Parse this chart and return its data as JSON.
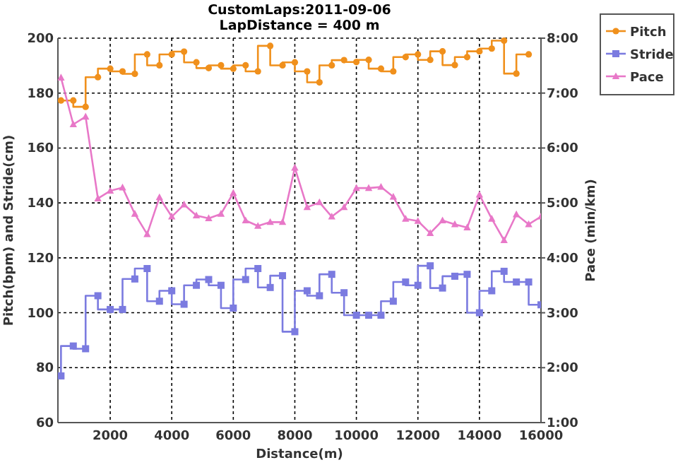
{
  "chart_data": {
    "type": "step",
    "title": "CustomLaps:2011-09-06",
    "subtitle": "LapDistance = 400 m",
    "xlabel": "Distance(m)",
    "ylabel": "Pitch(bpm) and Stride(cm)",
    "y2label": "Pace (min/km)",
    "x": [
      400,
      800,
      1200,
      1600,
      2000,
      2400,
      2800,
      3200,
      3600,
      4000,
      4400,
      4800,
      5200,
      5600,
      6000,
      6400,
      6800,
      7200,
      7600,
      8000,
      8400,
      8800,
      9200,
      9600,
      10000,
      10400,
      10800,
      11200,
      11600,
      12000,
      12400,
      12800,
      13200,
      13600,
      14000,
      14400,
      14800,
      15200,
      15600,
      16000
    ],
    "xlim": [
      300,
      16000
    ],
    "xticks": [
      2000,
      4000,
      6000,
      8000,
      10000,
      12000,
      14000,
      16000
    ],
    "ylim": [
      60,
      200
    ],
    "yticks": [
      60,
      80,
      100,
      120,
      140,
      160,
      180,
      200
    ],
    "y2lim": [
      1,
      8
    ],
    "y2ticks": [
      {
        "value": 1,
        "label": "1:00"
      },
      {
        "value": 2,
        "label": "2:00"
      },
      {
        "value": 3,
        "label": "3:00"
      },
      {
        "value": 4,
        "label": "4:00"
      },
      {
        "value": 5,
        "label": "5:00"
      },
      {
        "value": 6,
        "label": "6:00"
      },
      {
        "value": 7,
        "label": "7:00"
      },
      {
        "value": 8,
        "label": "8:00"
      }
    ],
    "grid": true,
    "legend": "right",
    "line_style": "solid",
    "series": [
      {
        "name": "Pitch",
        "color": "#f0901c",
        "marker": "circle",
        "values": [
          177.3,
          177.3,
          175,
          185.8,
          188.9,
          187.9,
          187,
          194.1,
          190.1,
          194.1,
          195.1,
          191.2,
          189.1,
          190.1,
          188.9,
          190.1,
          187.9,
          197.2,
          190.1,
          191.2,
          187.9,
          183.9,
          190.1,
          192,
          191.3,
          192.1,
          188.9,
          187.9,
          193.1,
          194.1,
          192.1,
          195.2,
          190.2,
          193.1,
          195.2,
          196.2,
          199.1,
          187.1,
          194.1,
          null
        ]
      },
      {
        "name": "Stride",
        "color": "#7b7be0",
        "marker": "square",
        "values": [
          77,
          87.9,
          86.9,
          106.2,
          101.2,
          101.2,
          112.3,
          116.1,
          104.2,
          108,
          103.1,
          110,
          112.1,
          110,
          101.7,
          112.1,
          116.1,
          109.2,
          113.5,
          93.1,
          108,
          106.2,
          114,
          107.3,
          99.1,
          99.1,
          99.1,
          104.2,
          111.2,
          110,
          117.1,
          109,
          113.3,
          114,
          100,
          108,
          115.1,
          111.2,
          111.2,
          102.9
        ]
      },
      {
        "name": "Pace",
        "type": "line",
        "axis": "y2",
        "color": "#e878c8",
        "marker": "triangle",
        "values": [
          7.28,
          6.43,
          6.57,
          5.08,
          5.22,
          5.28,
          4.8,
          4.43,
          5.1,
          4.75,
          4.97,
          4.77,
          4.72,
          4.8,
          5.18,
          4.68,
          4.58,
          4.65,
          4.65,
          5.64,
          4.92,
          5.01,
          4.75,
          4.92,
          5.27,
          5.27,
          5.29,
          5.11,
          4.71,
          4.67,
          4.45,
          4.68,
          4.61,
          4.55,
          5.15,
          4.71,
          4.32,
          4.79,
          4.61,
          4.75
        ]
      }
    ]
  }
}
